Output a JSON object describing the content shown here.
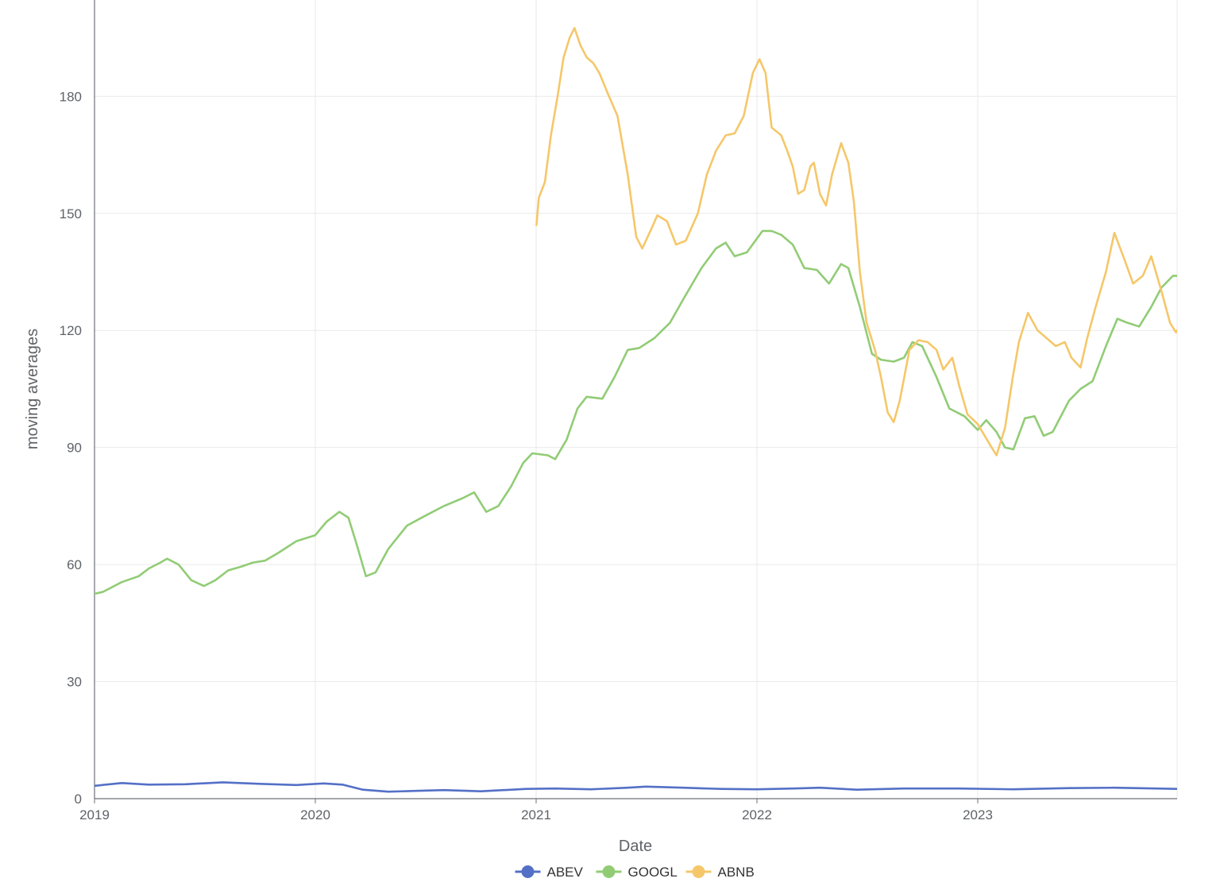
{
  "chart_data": {
    "type": "line",
    "xlabel": "Date",
    "ylabel": "moving averages",
    "x_ticks": [
      "2019",
      "2020",
      "2021",
      "2022",
      "2023"
    ],
    "y_ticks": [
      0,
      30,
      60,
      90,
      120,
      150,
      180
    ],
    "ylim": [
      0,
      205
    ],
    "xlim": [
      "2019-01-01",
      "2023-11-30"
    ],
    "grid": true,
    "legend_position": "bottom-center",
    "series": [
      {
        "name": "ABEV",
        "color": "#5470c6",
        "points": [
          [
            "2019-01-01",
            3.3
          ],
          [
            "2019-02-15",
            4.0
          ],
          [
            "2019-04-01",
            3.6
          ],
          [
            "2019-06-01",
            3.7
          ],
          [
            "2019-08-01",
            4.2
          ],
          [
            "2019-10-01",
            3.8
          ],
          [
            "2019-12-01",
            3.5
          ],
          [
            "2020-01-15",
            3.9
          ],
          [
            "2020-02-15",
            3.6
          ],
          [
            "2020-03-20",
            2.3
          ],
          [
            "2020-05-01",
            1.8
          ],
          [
            "2020-06-15",
            2.0
          ],
          [
            "2020-08-01",
            2.2
          ],
          [
            "2020-10-01",
            1.9
          ],
          [
            "2020-12-15",
            2.5
          ],
          [
            "2021-02-01",
            2.6
          ],
          [
            "2021-04-01",
            2.4
          ],
          [
            "2021-06-01",
            2.8
          ],
          [
            "2021-07-01",
            3.1
          ],
          [
            "2021-09-01",
            2.8
          ],
          [
            "2021-11-01",
            2.5
          ],
          [
            "2022-01-01",
            2.4
          ],
          [
            "2022-03-01",
            2.6
          ],
          [
            "2022-04-15",
            2.8
          ],
          [
            "2022-06-15",
            2.3
          ],
          [
            "2022-09-01",
            2.6
          ],
          [
            "2022-12-01",
            2.6
          ],
          [
            "2023-03-01",
            2.4
          ],
          [
            "2023-06-01",
            2.7
          ],
          [
            "2023-08-15",
            2.8
          ],
          [
            "2023-11-30",
            2.5
          ]
        ]
      },
      {
        "name": "GOOGL",
        "color": "#91cc75",
        "points": [
          [
            "2019-01-01",
            52.5
          ],
          [
            "2019-01-15",
            53
          ],
          [
            "2019-02-15",
            55.5
          ],
          [
            "2019-03-15",
            57
          ],
          [
            "2019-04-01",
            59
          ],
          [
            "2019-04-20",
            60.5
          ],
          [
            "2019-05-01",
            61.5
          ],
          [
            "2019-05-20",
            60
          ],
          [
            "2019-06-10",
            56
          ],
          [
            "2019-07-01",
            54.5
          ],
          [
            "2019-07-20",
            56
          ],
          [
            "2019-08-10",
            58.5
          ],
          [
            "2019-09-01",
            59.5
          ],
          [
            "2019-09-20",
            60.5
          ],
          [
            "2019-10-10",
            61
          ],
          [
            "2019-11-01",
            63
          ],
          [
            "2019-12-01",
            66
          ],
          [
            "2020-01-01",
            67.5
          ],
          [
            "2020-01-20",
            71
          ],
          [
            "2020-02-10",
            73.5
          ],
          [
            "2020-02-25",
            72
          ],
          [
            "2020-03-10",
            65
          ],
          [
            "2020-03-25",
            57
          ],
          [
            "2020-04-10",
            58
          ],
          [
            "2020-05-01",
            64
          ],
          [
            "2020-06-01",
            70
          ],
          [
            "2020-07-01",
            72.5
          ],
          [
            "2020-08-01",
            75
          ],
          [
            "2020-09-01",
            77
          ],
          [
            "2020-09-20",
            78.5
          ],
          [
            "2020-10-10",
            73.5
          ],
          [
            "2020-10-30",
            75
          ],
          [
            "2020-11-20",
            80
          ],
          [
            "2020-12-10",
            86
          ],
          [
            "2020-12-25",
            88.5
          ],
          [
            "2021-01-20",
            88
          ],
          [
            "2021-02-01",
            87
          ],
          [
            "2021-02-20",
            92
          ],
          [
            "2021-03-10",
            100
          ],
          [
            "2021-03-25",
            103
          ],
          [
            "2021-04-20",
            102.5
          ],
          [
            "2021-05-10",
            108
          ],
          [
            "2021-06-01",
            115
          ],
          [
            "2021-06-20",
            115.5
          ],
          [
            "2021-07-15",
            118
          ],
          [
            "2021-08-10",
            122
          ],
          [
            "2021-09-01",
            128
          ],
          [
            "2021-10-01",
            136
          ],
          [
            "2021-10-25",
            141
          ],
          [
            "2021-11-10",
            142.5
          ],
          [
            "2021-11-25",
            139
          ],
          [
            "2021-12-15",
            140
          ],
          [
            "2022-01-10",
            145.5
          ],
          [
            "2022-01-25",
            145.5
          ],
          [
            "2022-02-10",
            144.5
          ],
          [
            "2022-03-01",
            142
          ],
          [
            "2022-03-20",
            136
          ],
          [
            "2022-04-10",
            135.5
          ],
          [
            "2022-04-30",
            132
          ],
          [
            "2022-05-20",
            137
          ],
          [
            "2022-06-01",
            136
          ],
          [
            "2022-06-20",
            126
          ],
          [
            "2022-07-10",
            114
          ],
          [
            "2022-07-25",
            112.5
          ],
          [
            "2022-08-15",
            112
          ],
          [
            "2022-09-01",
            113
          ],
          [
            "2022-09-15",
            117
          ],
          [
            "2022-10-01",
            116
          ],
          [
            "2022-10-25",
            108
          ],
          [
            "2022-11-15",
            100
          ],
          [
            "2022-12-10",
            98
          ],
          [
            "2023-01-01",
            94.5
          ],
          [
            "2023-01-15",
            97
          ],
          [
            "2023-02-01",
            94
          ],
          [
            "2023-02-15",
            90
          ],
          [
            "2023-03-01",
            89.5
          ],
          [
            "2023-03-20",
            97.5
          ],
          [
            "2023-04-05",
            98
          ],
          [
            "2023-04-20",
            93
          ],
          [
            "2023-05-05",
            94
          ],
          [
            "2023-06-01",
            102
          ],
          [
            "2023-06-20",
            105
          ],
          [
            "2023-07-10",
            107
          ],
          [
            "2023-08-01",
            116
          ],
          [
            "2023-08-20",
            123
          ],
          [
            "2023-09-05",
            122
          ],
          [
            "2023-09-25",
            121
          ],
          [
            "2023-10-15",
            126
          ],
          [
            "2023-11-01",
            131
          ],
          [
            "2023-11-20",
            134
          ],
          [
            "2023-12-05",
            134
          ],
          [
            "2023-12-20",
            135
          ],
          [
            "2024-01-10",
            131.5
          ],
          [
            "2024-01-25",
            132.5
          ]
        ]
      },
      {
        "name": "ABNB",
        "color": "#f5c76a",
        "points": [
          [
            "2021-01-01",
            147
          ],
          [
            "2021-01-05",
            154
          ],
          [
            "2021-01-15",
            158
          ],
          [
            "2021-01-25",
            170
          ],
          [
            "2021-02-05",
            180
          ],
          [
            "2021-02-15",
            190
          ],
          [
            "2021-02-25",
            195
          ],
          [
            "2021-03-05",
            197.5
          ],
          [
            "2021-03-15",
            193
          ],
          [
            "2021-03-25",
            190
          ],
          [
            "2021-04-05",
            188.5
          ],
          [
            "2021-04-15",
            186
          ],
          [
            "2021-05-01",
            180
          ],
          [
            "2021-05-15",
            175
          ],
          [
            "2021-06-01",
            160
          ],
          [
            "2021-06-15",
            144
          ],
          [
            "2021-06-25",
            141
          ],
          [
            "2021-07-10",
            146
          ],
          [
            "2021-07-20",
            149.5
          ],
          [
            "2021-08-05",
            148
          ],
          [
            "2021-08-20",
            142
          ],
          [
            "2021-09-05",
            143
          ],
          [
            "2021-09-25",
            150
          ],
          [
            "2021-10-10",
            160
          ],
          [
            "2021-10-25",
            166
          ],
          [
            "2021-11-10",
            170
          ],
          [
            "2021-11-25",
            170.5
          ],
          [
            "2021-12-10",
            175
          ],
          [
            "2021-12-25",
            186
          ],
          [
            "2022-01-05",
            189.5
          ],
          [
            "2022-01-15",
            186
          ],
          [
            "2022-01-25",
            172
          ],
          [
            "2022-02-10",
            170
          ],
          [
            "2022-02-20",
            166
          ],
          [
            "2022-03-01",
            162
          ],
          [
            "2022-03-10",
            155
          ],
          [
            "2022-03-20",
            156
          ],
          [
            "2022-03-30",
            162
          ],
          [
            "2022-04-05",
            163
          ],
          [
            "2022-04-15",
            155
          ],
          [
            "2022-04-25",
            152
          ],
          [
            "2022-05-05",
            160
          ],
          [
            "2022-05-20",
            168
          ],
          [
            "2022-06-01",
            163
          ],
          [
            "2022-06-10",
            153
          ],
          [
            "2022-06-20",
            135
          ],
          [
            "2022-07-01",
            122
          ],
          [
            "2022-07-15",
            115
          ],
          [
            "2022-07-25",
            108
          ],
          [
            "2022-08-05",
            99
          ],
          [
            "2022-08-15",
            96.5
          ],
          [
            "2022-08-25",
            102
          ],
          [
            "2022-09-10",
            115
          ],
          [
            "2022-09-25",
            117.5
          ],
          [
            "2022-10-10",
            117
          ],
          [
            "2022-10-25",
            115
          ],
          [
            "2022-11-05",
            110
          ],
          [
            "2022-11-20",
            113
          ],
          [
            "2022-12-01",
            106
          ],
          [
            "2022-12-15",
            98.5
          ],
          [
            "2023-01-01",
            96
          ],
          [
            "2023-01-20",
            91
          ],
          [
            "2023-02-01",
            88
          ],
          [
            "2023-02-15",
            95
          ],
          [
            "2023-02-28",
            108
          ],
          [
            "2023-03-10",
            117
          ],
          [
            "2023-03-25",
            124.5
          ],
          [
            "2023-04-10",
            120
          ],
          [
            "2023-04-25",
            118
          ],
          [
            "2023-05-10",
            116
          ],
          [
            "2023-05-25",
            117
          ],
          [
            "2023-06-05",
            113
          ],
          [
            "2023-06-20",
            110.5
          ],
          [
            "2023-07-01",
            118
          ],
          [
            "2023-07-15",
            126
          ],
          [
            "2023-08-01",
            135
          ],
          [
            "2023-08-15",
            145
          ],
          [
            "2023-09-01",
            138
          ],
          [
            "2023-09-15",
            132
          ],
          [
            "2023-10-01",
            134
          ],
          [
            "2023-10-15",
            139
          ],
          [
            "2023-11-01",
            130
          ],
          [
            "2023-11-15",
            122
          ],
          [
            "2023-11-25",
            119.5
          ],
          [
            "2023-12-10",
            123.5
          ]
        ]
      }
    ]
  }
}
